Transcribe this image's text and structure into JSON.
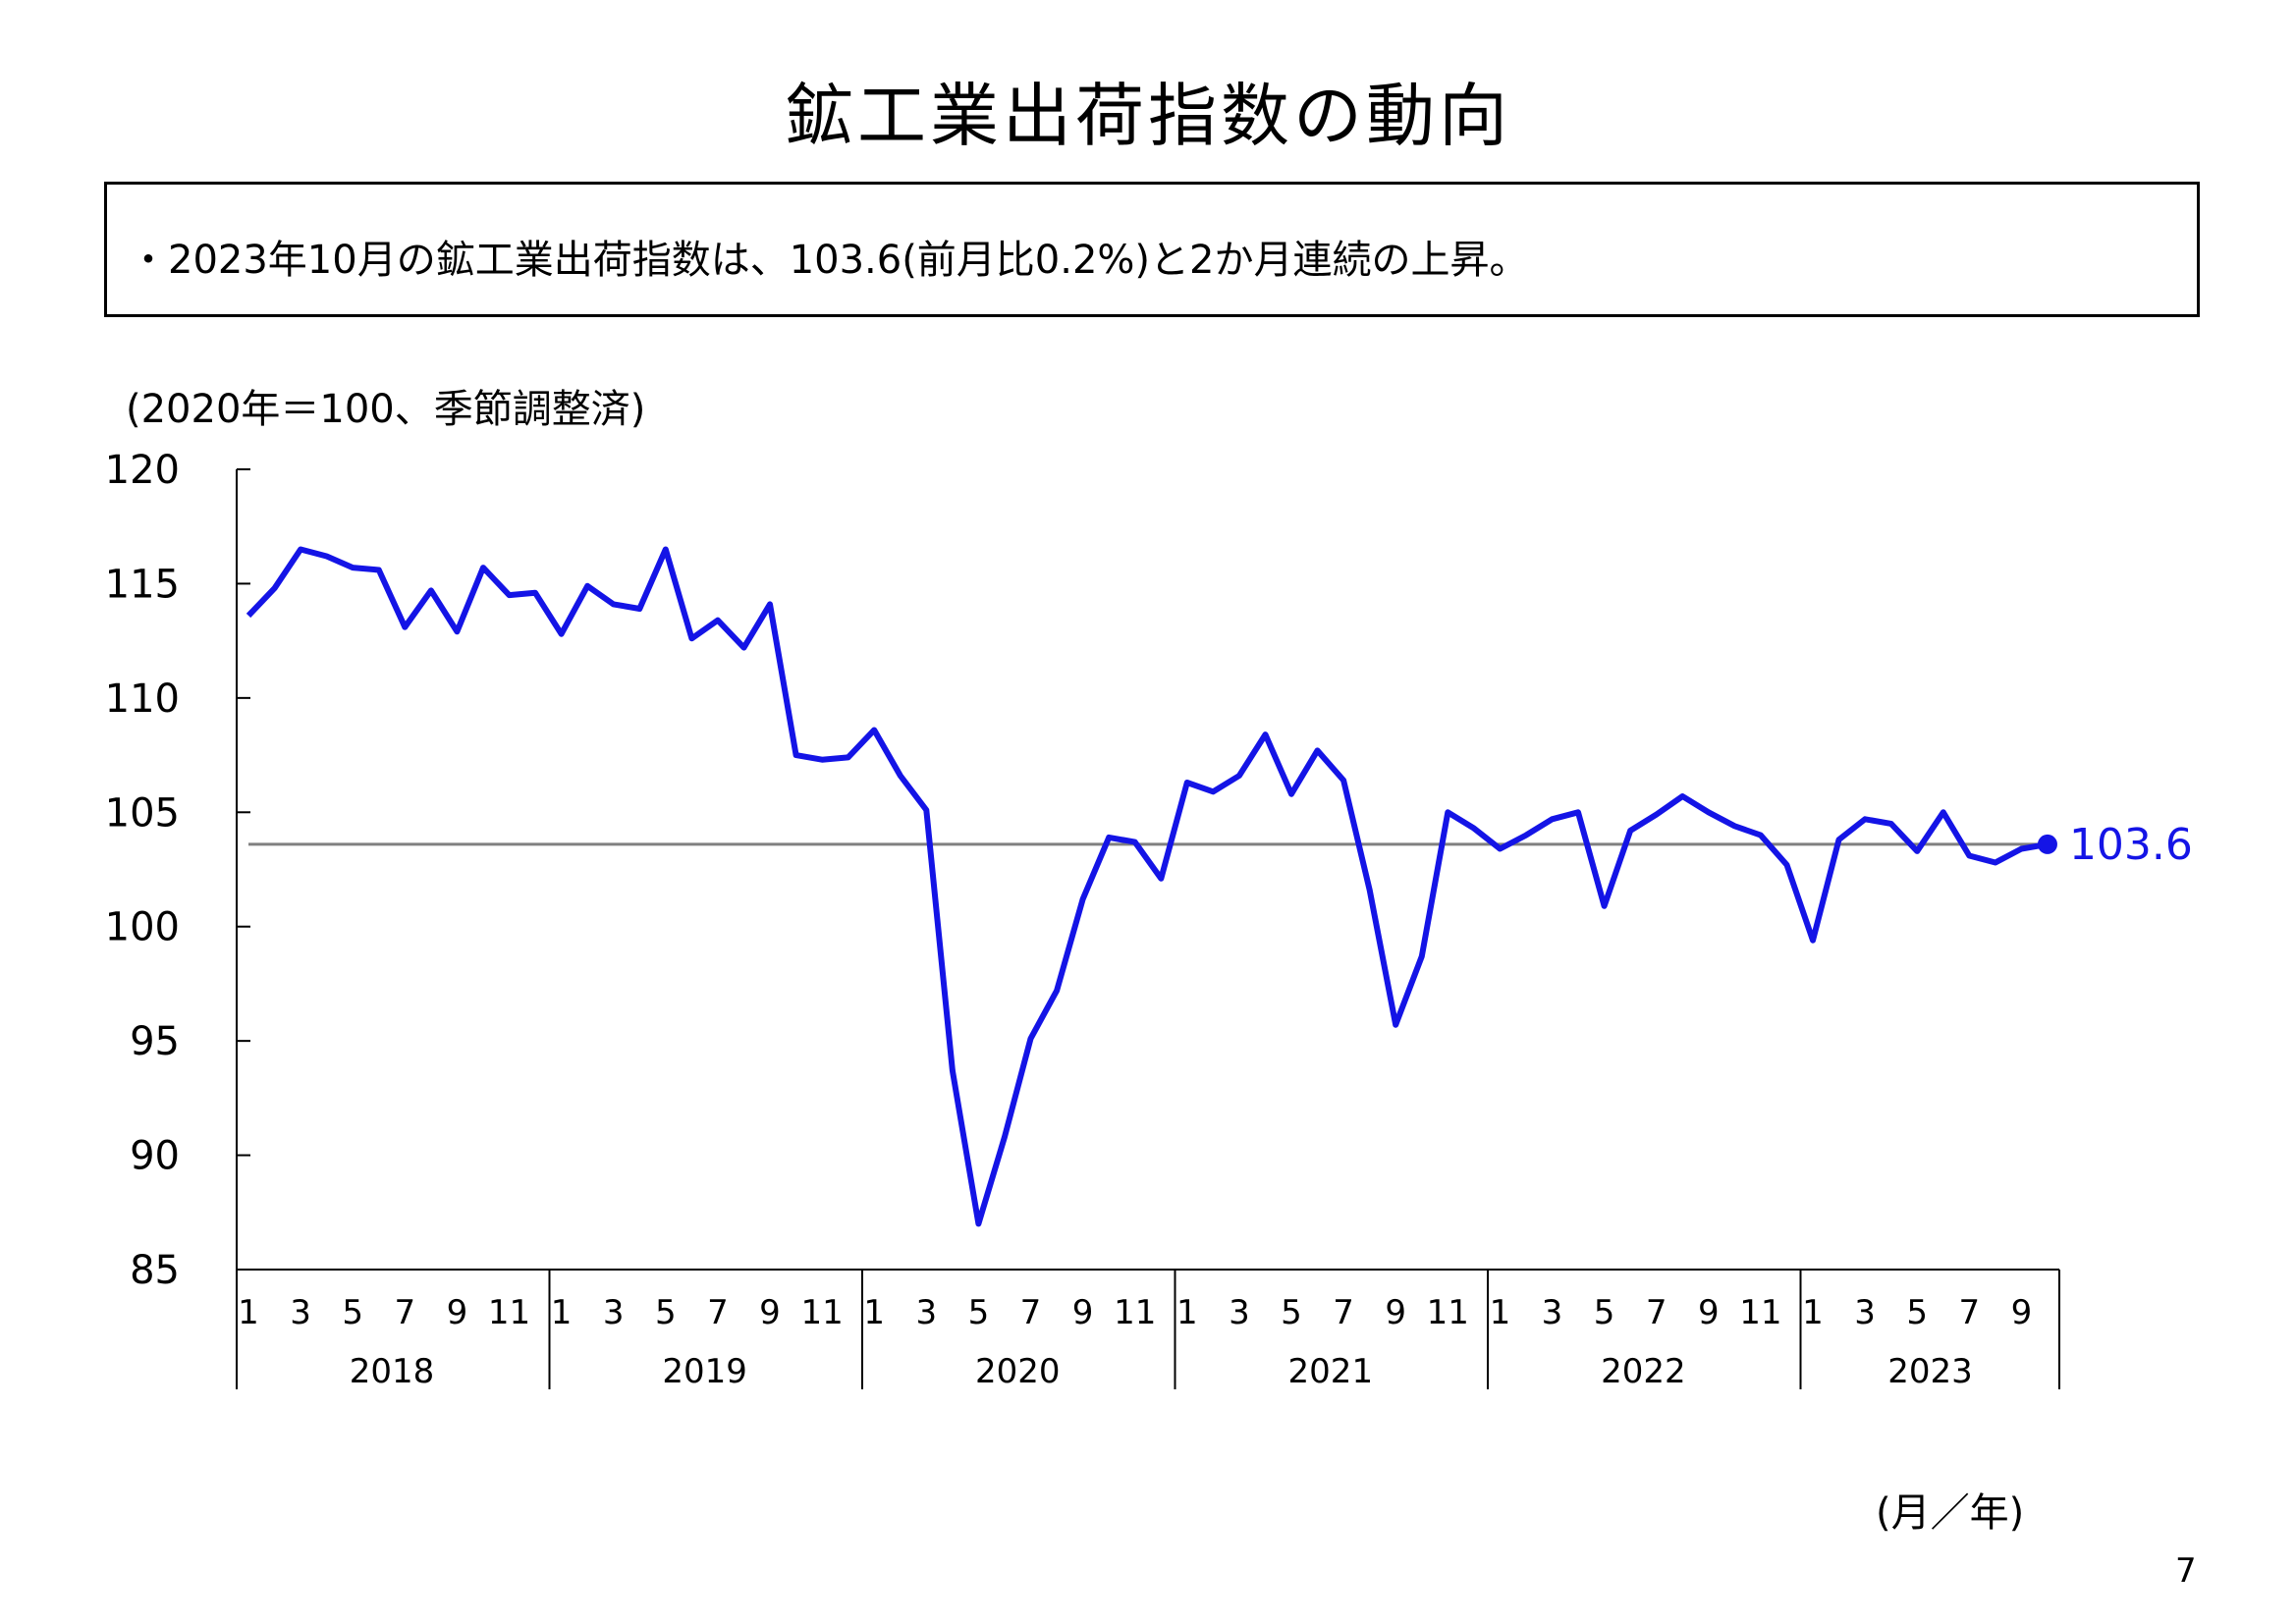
{
  "title": "鉱工業出荷指数の動向",
  "summary": "・2023年10月の鉱工業出荷指数は、103.6(前月比0.2%)と2か月連続の上昇。",
  "page_number": "7",
  "colors": {
    "series": "#1414e6",
    "reference_line": "#808080",
    "axis": "#000000"
  },
  "chart_data": {
    "type": "line",
    "title": "鉱工業出荷指数の動向",
    "ylabel": "(2020年＝100、季節調整済)",
    "xlabel": "(月／年)",
    "ylim": [
      85,
      120
    ],
    "yticks": [
      "120",
      "115",
      "110",
      "105",
      "100",
      "95",
      "90",
      "85"
    ],
    "month_ticks": [
      "1",
      "3",
      "5",
      "7",
      "9",
      "11"
    ],
    "years": [
      "2018",
      "2019",
      "2020",
      "2021",
      "2022",
      "2023"
    ],
    "x_start": "2018-01",
    "x_end": "2023-10",
    "grid": false,
    "reference_line": 103.6,
    "last_label": "103.6",
    "series": [
      {
        "values": [
          113.6,
          114.8,
          116.5,
          116.2,
          115.7,
          115.6,
          113.1,
          114.7,
          112.9,
          115.7,
          114.5,
          114.6,
          112.8,
          114.9,
          114.1,
          113.9,
          116.5,
          112.6,
          113.4,
          112.2,
          114.1,
          107.5,
          107.3,
          107.4,
          108.6,
          106.6,
          105.1,
          93.7,
          87.0,
          90.8,
          95.1,
          97.2,
          101.2,
          103.9,
          103.7,
          102.1,
          106.3,
          105.9,
          106.6,
          108.4,
          105.8,
          107.7,
          106.4,
          101.6,
          95.7,
          98.7,
          105.0,
          104.3,
          103.4,
          104.0,
          104.7,
          105.0,
          100.9,
          104.2,
          104.9,
          105.7,
          105.0,
          104.4,
          104.0,
          102.7,
          99.4,
          103.8,
          104.7,
          104.5,
          103.3,
          105.0,
          103.1,
          102.8,
          103.4,
          103.6
        ]
      }
    ]
  }
}
